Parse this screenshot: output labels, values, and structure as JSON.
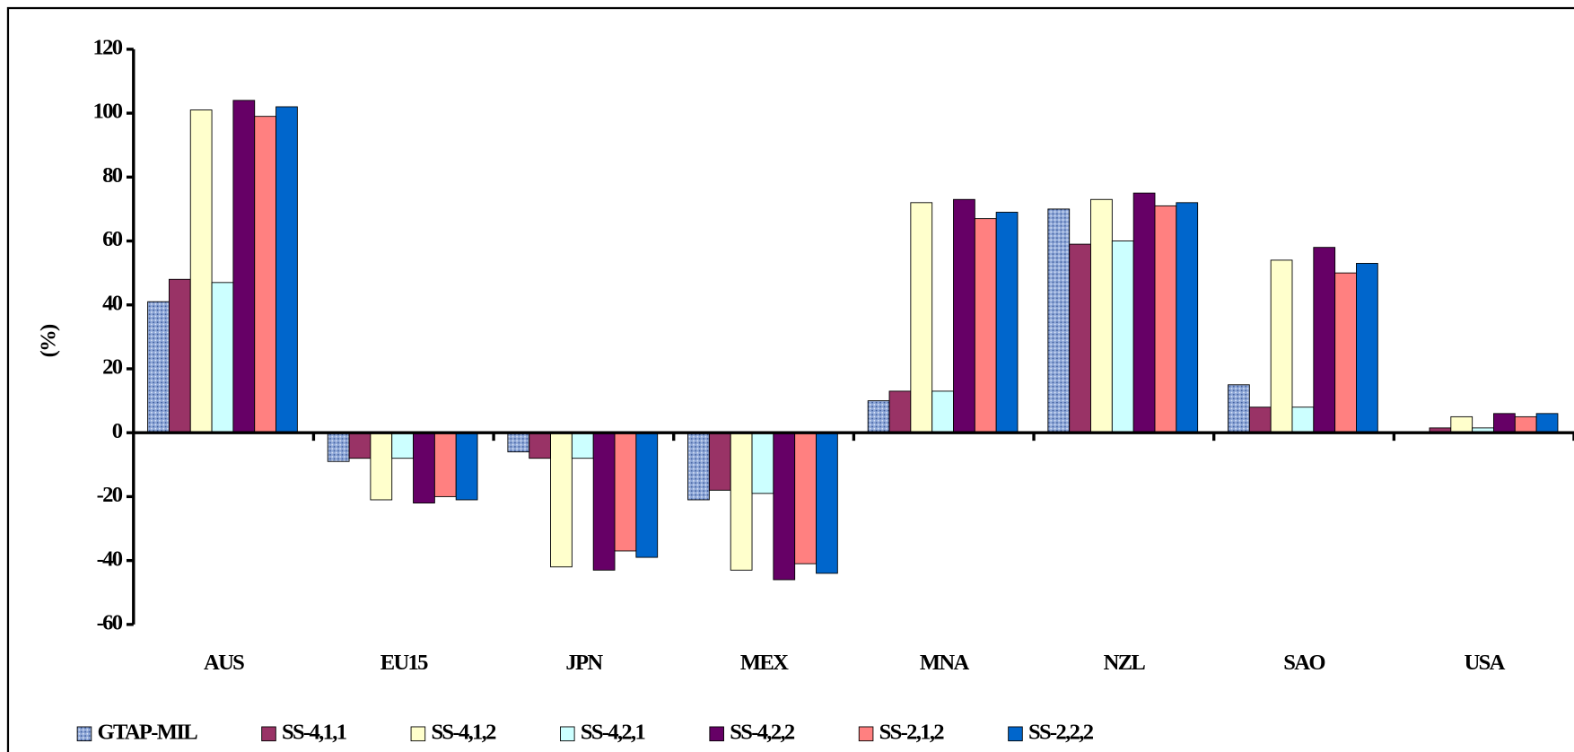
{
  "chart_data": {
    "type": "bar",
    "y_label": "(%)",
    "categories": [
      "AUS",
      "EU15",
      "JPN",
      "MEX",
      "MNA",
      "NZL",
      "SAO",
      "USA"
    ],
    "series": [
      {
        "name": "GTAP-MIL",
        "color": "#8fa8d8",
        "values": [
          41,
          -9,
          -6,
          -21,
          10,
          70,
          15,
          0.3
        ]
      },
      {
        "name": "SS-4,1,1",
        "color": "#993366",
        "values": [
          48,
          -8,
          -8,
          -18,
          13,
          59,
          8,
          1.5
        ]
      },
      {
        "name": "SS-4,1,2",
        "color": "#ffffcc",
        "values": [
          101,
          -21,
          -42,
          -43,
          72,
          73,
          54,
          5
        ]
      },
      {
        "name": "SS-4,2,1",
        "color": "#ccffff",
        "values": [
          47,
          -8,
          -8,
          -19,
          13,
          60,
          8,
          1.5
        ]
      },
      {
        "name": "SS-4,2,2",
        "color": "#660066",
        "values": [
          104,
          -22,
          -43,
          -46,
          73,
          75,
          58,
          6
        ]
      },
      {
        "name": "SS-2,1,2",
        "color": "#ff8080",
        "values": [
          99,
          -20,
          -37,
          -41,
          67,
          71,
          50,
          5
        ]
      },
      {
        "name": "SS-2,2,2",
        "color": "#0066cc",
        "values": [
          102,
          -21,
          -39,
          -44,
          69,
          72,
          53,
          6
        ]
      }
    ],
    "ylim": [
      -60,
      120
    ],
    "yticks": [
      -60,
      -40,
      -20,
      0,
      20,
      40,
      60,
      80,
      100,
      120
    ],
    "legend": "bottom"
  }
}
